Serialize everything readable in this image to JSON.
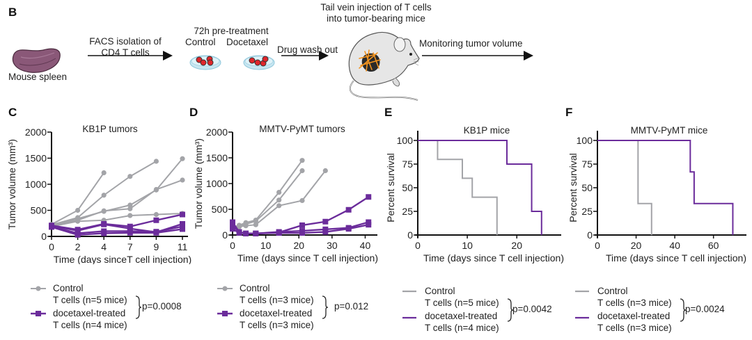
{
  "panel_labels": {
    "b": "B",
    "c": "C",
    "d": "D",
    "e": "E",
    "f": "F"
  },
  "schematic": {
    "spleen_label": "Mouse spleen",
    "step1": [
      "FACS isolation of",
      "CD4 T cells"
    ],
    "step2_title": "72h pre-treatment",
    "step2_control": "Control",
    "step2_docetaxel": "Docetaxel",
    "step3": "Drug wash out",
    "step4": [
      "Tail vein injection of T cells",
      "into tumor-bearing mice"
    ],
    "step5": "Monitoring tumor volume"
  },
  "colors": {
    "control": "#a3a4a8",
    "docetaxel": "#6b2c9b",
    "axis": "#111111"
  },
  "chart_data": [
    {
      "id": "C",
      "type": "line",
      "title": "KB1P tumors",
      "xlabel": "Time (days sinceT cell injection)",
      "ylabel": "Tumor volume (mm³)",
      "x_ticks": [
        0,
        2,
        4,
        7,
        9,
        11
      ],
      "x_categorical": true,
      "y_ticks": [
        0,
        500,
        1000,
        1500,
        2000
      ],
      "ylim": [
        0,
        2000
      ],
      "series": [
        {
          "group": "control",
          "x": [
            0,
            2,
            4
          ],
          "y": [
            230,
            500,
            1220
          ]
        },
        {
          "group": "control",
          "x": [
            0,
            2,
            4,
            7,
            9
          ],
          "y": [
            220,
            360,
            790,
            1150,
            1440
          ]
        },
        {
          "group": "control",
          "x": [
            0,
            2,
            4,
            7,
            9,
            11
          ],
          "y": [
            210,
            340,
            480,
            600,
            890,
            1490
          ]
        },
        {
          "group": "control",
          "x": [
            0,
            2,
            4,
            7,
            9,
            11
          ],
          "y": [
            200,
            310,
            490,
            530,
            900,
            1080
          ]
        },
        {
          "group": "control",
          "x": [
            0,
            2,
            4,
            7,
            9,
            11
          ],
          "y": [
            190,
            290,
            310,
            400,
            420,
            440
          ]
        },
        {
          "group": "docetaxel",
          "x": [
            0,
            2,
            4,
            7,
            9,
            11
          ],
          "y": [
            210,
            130,
            240,
            190,
            310,
            420
          ]
        },
        {
          "group": "docetaxel",
          "x": [
            0,
            2,
            4,
            7,
            9,
            11
          ],
          "y": [
            200,
            110,
            230,
            150,
            80,
            240
          ]
        },
        {
          "group": "docetaxel",
          "x": [
            0,
            2,
            4,
            7,
            9,
            11
          ],
          "y": [
            190,
            60,
            100,
            100,
            90,
            190
          ]
        },
        {
          "group": "docetaxel",
          "x": [
            0,
            2,
            4,
            7,
            9,
            11
          ],
          "y": [
            180,
            30,
            60,
            70,
            70,
            140
          ]
        }
      ],
      "legend": {
        "control": [
          "Control",
          "T cells (n=5 mice)"
        ],
        "docetaxel": [
          "docetaxel-treated",
          "T cells (n=4 mice)"
        ],
        "pvalue": "p=0.0008"
      }
    },
    {
      "id": "D",
      "type": "line",
      "title": "MMTV-PyMT tumors",
      "xlabel": "Time (days since T cell injection)",
      "ylabel": "Tumor volume (mm³)",
      "x_ticks": [
        0,
        10,
        20,
        30,
        40
      ],
      "xlim": [
        0,
        42
      ],
      "y_ticks": [
        0,
        500,
        1000,
        1500,
        2000
      ],
      "ylim": [
        0,
        2000
      ],
      "series": [
        {
          "group": "control",
          "x": [
            0,
            2,
            4,
            7,
            14,
            21
          ],
          "y": [
            150,
            190,
            240,
            290,
            830,
            1450
          ]
        },
        {
          "group": "control",
          "x": [
            0,
            2,
            4,
            7,
            14,
            21
          ],
          "y": [
            140,
            170,
            210,
            270,
            680,
            1250
          ]
        },
        {
          "group": "control",
          "x": [
            0,
            2,
            4,
            7,
            14,
            21,
            28
          ],
          "y": [
            120,
            160,
            180,
            200,
            570,
            670,
            1250
          ]
        },
        {
          "group": "docetaxel",
          "x": [
            0,
            2,
            4,
            7,
            14,
            21,
            28,
            35,
            41
          ],
          "y": [
            250,
            60,
            30,
            30,
            50,
            190,
            260,
            490,
            740
          ]
        },
        {
          "group": "docetaxel",
          "x": [
            0,
            2,
            4,
            7,
            14,
            21,
            28,
            35,
            41
          ],
          "y": [
            200,
            50,
            30,
            30,
            60,
            80,
            110,
            140,
            250
          ]
        },
        {
          "group": "docetaxel",
          "x": [
            0,
            2,
            4,
            7,
            14,
            21,
            28,
            35,
            41
          ],
          "y": [
            120,
            40,
            30,
            30,
            40,
            40,
            60,
            120,
            200
          ]
        }
      ],
      "legend": {
        "control": [
          "Control",
          "T cells (n=3 mice)"
        ],
        "docetaxel": [
          "docetaxel-treated",
          "T cells (n=3 mice)"
        ],
        "pvalue": "p=0.012"
      }
    },
    {
      "id": "E",
      "type": "line",
      "subtype": "kaplan-meier",
      "title": "KB1P mice",
      "xlabel": "Time (days since T cell injection)",
      "ylabel": "Percent survival",
      "x_ticks": [
        0,
        10,
        20
      ],
      "xlim": [
        0,
        27
      ],
      "y_ticks": [
        0,
        25,
        50,
        75,
        100
      ],
      "ylim": [
        0,
        100
      ],
      "series": [
        {
          "group": "control",
          "x": [
            0,
            4,
            9,
            11,
            16
          ],
          "y": [
            100,
            80,
            60,
            40,
            0
          ]
        },
        {
          "group": "docetaxel",
          "x": [
            0,
            18,
            23,
            25
          ],
          "y": [
            100,
            75,
            25,
            0
          ]
        }
      ],
      "legend": {
        "control": [
          "Control",
          "T cells (n=5 mice)"
        ],
        "docetaxel": [
          "docetaxel-treated",
          "T cells (n=4 mice)"
        ],
        "pvalue": "p=0.0042"
      }
    },
    {
      "id": "F",
      "type": "line",
      "subtype": "kaplan-meier",
      "title": "MMTV-PyMT mice",
      "xlabel": "Time (days since T cell injection)",
      "ylabel": "Percent survival",
      "x_ticks": [
        0,
        20,
        40,
        60
      ],
      "xlim": [
        0,
        72
      ],
      "y_ticks": [
        0,
        25,
        50,
        75,
        100
      ],
      "ylim": [
        0,
        100
      ],
      "series": [
        {
          "group": "control",
          "x": [
            0,
            21,
            28
          ],
          "y": [
            100,
            33.3,
            0
          ]
        },
        {
          "group": "docetaxel",
          "x": [
            0,
            48,
            50,
            70
          ],
          "y": [
            100,
            66.7,
            33.3,
            0
          ]
        }
      ],
      "legend": {
        "control": [
          "Control",
          "T cells (n=3 mice)"
        ],
        "docetaxel": [
          "docetaxel-treated",
          "T cells (n=3 mice)"
        ],
        "pvalue": "p=0.0024"
      }
    }
  ]
}
